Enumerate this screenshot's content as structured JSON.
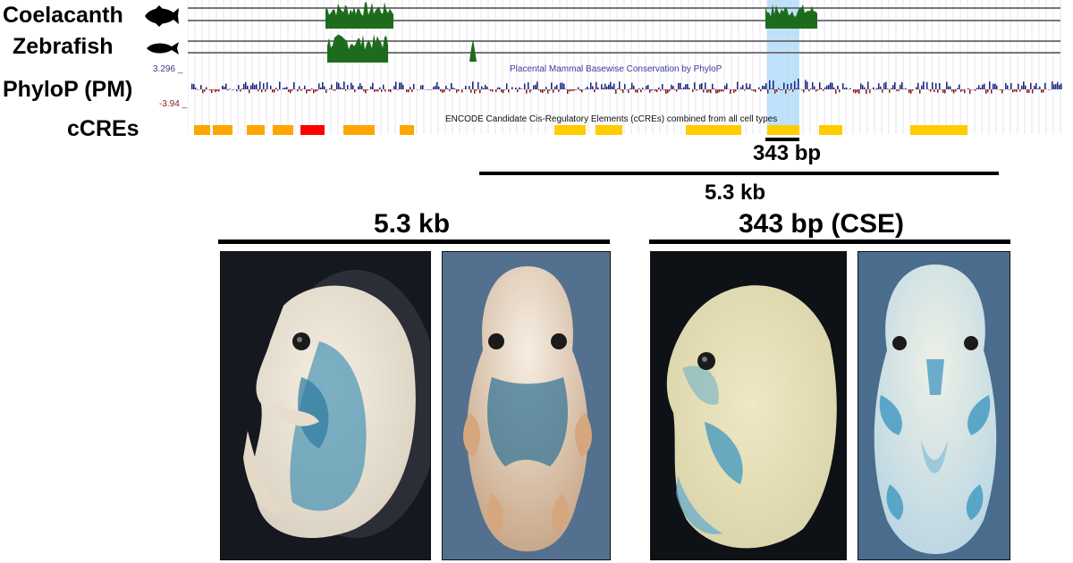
{
  "tracks": {
    "coelacanth": "Coelacanth",
    "zebrafish": "Zebrafish",
    "phylop": "PhyloP (PM)",
    "ccres": "cCREs"
  },
  "phylop_track": {
    "title": "Placental Mammal Basewise Conservation by PhyloP",
    "max": "3.296 _",
    "min": "-3.94 _"
  },
  "ccre_track": {
    "title": "ENCODE Candidate Cis-Regulatory Elements (cCREs) combined from all cell types"
  },
  "colors": {
    "conservation_green": "#1e6b1e",
    "phylop_positive": "#1a237e",
    "phylop_negative": "#8b1a1a",
    "ccre_orange": "#ffa500",
    "ccre_red": "#ff0000",
    "ccre_yellow": "#ffcc00",
    "highlight_blue": "#a8d8f8",
    "lacz_blue": "#2e8fb4"
  },
  "scale": {
    "short_label": "343 bp",
    "long_label": "5.3 kb"
  },
  "panels": {
    "left_title": "5.3 kb",
    "right_title": "343 bp (CSE)"
  }
}
